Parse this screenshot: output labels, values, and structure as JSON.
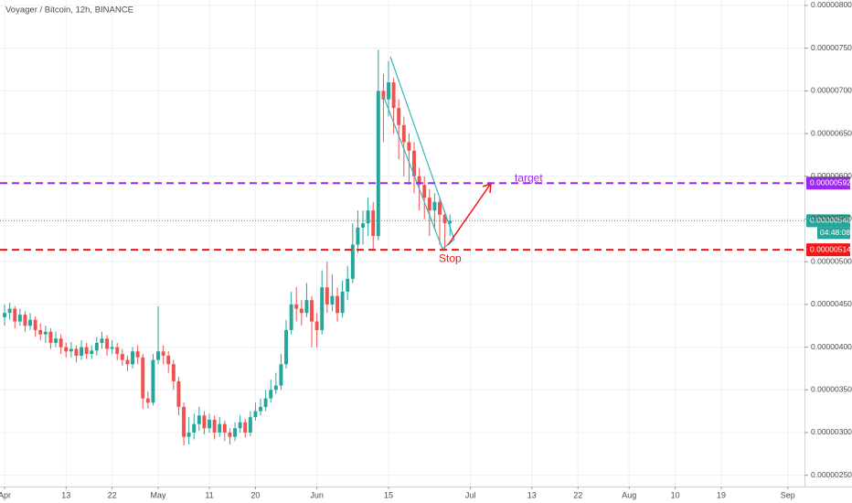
{
  "chart_data": {
    "type": "candlestick",
    "title": "Voyager / Bitcoin, 12h, BINANCE",
    "x": [
      0,
      1,
      2,
      3,
      4,
      5,
      6,
      7,
      8,
      9,
      10,
      11,
      12,
      13,
      14,
      15,
      16,
      17,
      18,
      19,
      20,
      21,
      22,
      23,
      24,
      25,
      26,
      27,
      28,
      29,
      30,
      31,
      32,
      33,
      34,
      35,
      36,
      37,
      38,
      39,
      40,
      41,
      42,
      43,
      44,
      45,
      46,
      47,
      48,
      49,
      50,
      51,
      52,
      53,
      54,
      55,
      56,
      57,
      58,
      59,
      60,
      61,
      62,
      63,
      64,
      65,
      66,
      67,
      68,
      69,
      70,
      71,
      72,
      73,
      74,
      75,
      76,
      77,
      78,
      79,
      80,
      81,
      82,
      83,
      84,
      85,
      86,
      87
    ],
    "open": [
      4.35e-06,
      4.4e-06,
      4.45e-06,
      4.3e-06,
      4.38e-06,
      4.25e-06,
      4.32e-06,
      4.2e-06,
      4.15e-06,
      4.18e-06,
      4.05e-06,
      4.1e-06,
      4e-06,
      3.95e-06,
      3.98e-06,
      3.9e-06,
      4e-06,
      3.92e-06,
      3.96e-06,
      4.05e-06,
      4.1e-06,
      3.98e-06,
      4e-06,
      3.92e-06,
      3.85e-06,
      3.8e-06,
      3.95e-06,
      3.88e-06,
      3.4e-06,
      3.35e-06,
      3.85e-06,
      3.95e-06,
      3.9e-06,
      3.8e-06,
      3.6e-06,
      3.3e-06,
      2.95e-06,
      3e-06,
      3.1e-06,
      3.2e-06,
      3.05e-06,
      3.15e-06,
      3e-06,
      3.1e-06,
      3e-06,
      2.95e-06,
      3.05e-06,
      3.12e-06,
      3e-06,
      3.18e-06,
      3.25e-06,
      3.3e-06,
      3.4e-06,
      3.5e-06,
      3.55e-06,
      3.8e-06,
      4.2e-06,
      4.5e-06,
      4.45e-06,
      4.4e-06,
      4.55e-06,
      4.3e-06,
      4.2e-06,
      4.7e-06,
      4.5e-06,
      4.6e-06,
      4.4e-06,
      4.65e-06,
      4.8e-06,
      5.2e-06,
      5.4e-06,
      5.45e-06,
      5.6e-06,
      5.3e-06,
      7e-06,
      6.9e-06,
      7.1e-06,
      6.8e-06,
      6.6e-06,
      6.4e-06,
      6.3e-06,
      6e-06,
      5.9e-06,
      5.75e-06,
      5.6e-06,
      5.7e-06,
      5.55e-06,
      5.45e-06
    ],
    "high": [
      4.5e-06,
      4.52e-06,
      4.48e-06,
      4.45e-06,
      4.42e-06,
      4.4e-06,
      4.36e-06,
      4.28e-06,
      4.25e-06,
      4.22e-06,
      4.18e-06,
      4.15e-06,
      4.05e-06,
      4.06e-06,
      4.02e-06,
      4.08e-06,
      4.05e-06,
      4.02e-06,
      4.12e-06,
      4.18e-06,
      4.14e-06,
      4.08e-06,
      4.05e-06,
      3.98e-06,
      3.9e-06,
      4e-06,
      4.02e-06,
      3.92e-06,
      3.48e-06,
      3.92e-06,
      4.48e-06,
      4.02e-06,
      3.95e-06,
      3.85e-06,
      3.65e-06,
      3.35e-06,
      3.18e-06,
      3.22e-06,
      3.3e-06,
      3.25e-06,
      3.22e-06,
      3.2e-06,
      3.18e-06,
      3.14e-06,
      3.05e-06,
      3.12e-06,
      3.2e-06,
      3.16e-06,
      3.25e-06,
      3.35e-06,
      3.4e-06,
      3.5e-06,
      3.62e-06,
      3.7e-06,
      3.92e-06,
      4.32e-06,
      4.65e-06,
      4.7e-06,
      4.55e-06,
      4.75e-06,
      4.6e-06,
      4.4e-06,
      4.9e-06,
      5e-06,
      4.85e-06,
      4.7e-06,
      4.78e-06,
      4.95e-06,
      5.45e-06,
      5.6e-06,
      5.6e-06,
      5.75e-06,
      5.7e-06,
      7.48e-06,
      7.2e-06,
      7.35e-06,
      7.15e-06,
      6.9e-06,
      6.7e-06,
      6.5e-06,
      6.4e-06,
      6.1e-06,
      6e-06,
      5.85e-06,
      5.8e-06,
      5.75e-06,
      5.6e-06,
      5.55e-06
    ],
    "low": [
      4.25e-06,
      4.32e-06,
      4.22e-06,
      4.25e-06,
      4.18e-06,
      4.2e-06,
      4.12e-06,
      4.08e-06,
      4.05e-06,
      3.98e-06,
      4e-06,
      3.92e-06,
      3.88e-06,
      3.88e-06,
      3.82e-06,
      3.85e-06,
      3.86e-06,
      3.86e-06,
      3.9e-06,
      3.98e-06,
      3.9e-06,
      3.92e-06,
      3.85e-06,
      3.78e-06,
      3.72e-06,
      3.75e-06,
      3.8e-06,
      3.28e-06,
      3.28e-06,
      3.32e-06,
      3.8e-06,
      3.8e-06,
      3.7e-06,
      3.5e-06,
      3.2e-06,
      2.85e-06,
      2.86e-06,
      2.92e-06,
      3.02e-06,
      2.98e-06,
      3e-06,
      2.92e-06,
      2.95e-06,
      2.9e-06,
      2.86e-06,
      2.9e-06,
      3e-06,
      2.94e-06,
      2.96e-06,
      3.14e-06,
      3.2e-06,
      3.25e-06,
      3.35e-06,
      3.45e-06,
      3.5e-06,
      3.75e-06,
      4.15e-06,
      4.3e-06,
      4.25e-06,
      4.35e-06,
      4e-06,
      4e-06,
      4.15e-06,
      4.4e-06,
      4.42e-06,
      4.3e-06,
      4.35e-06,
      4.55e-06,
      4.75e-06,
      5.1e-06,
      5.2e-06,
      5.3e-06,
      5.15e-06,
      5.25e-06,
      6.4e-06,
      6.7e-06,
      6.5e-06,
      6.2e-06,
      6e-06,
      5.9e-06,
      5.8e-06,
      5.6e-06,
      5.5e-06,
      5.3e-06,
      5.4e-06,
      5.2e-06,
      5.15e-06,
      5.3e-06
    ],
    "close": [
      4.4e-06,
      4.45e-06,
      4.3e-06,
      4.38e-06,
      4.25e-06,
      4.32e-06,
      4.2e-06,
      4.15e-06,
      4.18e-06,
      4.05e-06,
      4.1e-06,
      4e-06,
      3.95e-06,
      3.98e-06,
      3.9e-06,
      4e-06,
      3.92e-06,
      3.96e-06,
      4.05e-06,
      4.1e-06,
      3.98e-06,
      4e-06,
      3.92e-06,
      3.85e-06,
      3.8e-06,
      3.95e-06,
      3.88e-06,
      3.4e-06,
      3.35e-06,
      3.85e-06,
      3.95e-06,
      3.9e-06,
      3.8e-06,
      3.6e-06,
      3.3e-06,
      2.95e-06,
      3e-06,
      3.1e-06,
      3.2e-06,
      3.05e-06,
      3.15e-06,
      3e-06,
      3.1e-06,
      3e-06,
      2.95e-06,
      3.05e-06,
      3.12e-06,
      3e-06,
      3.18e-06,
      3.25e-06,
      3.3e-06,
      3.4e-06,
      3.5e-06,
      3.55e-06,
      3.8e-06,
      4.2e-06,
      4.5e-06,
      4.45e-06,
      4.4e-06,
      4.55e-06,
      4.3e-06,
      4.2e-06,
      4.7e-06,
      4.5e-06,
      4.6e-06,
      4.4e-06,
      4.65e-06,
      4.8e-06,
      5.2e-06,
      5.4e-06,
      5.45e-06,
      5.6e-06,
      5.3e-06,
      7e-06,
      6.9e-06,
      7.1e-06,
      6.8e-06,
      6.6e-06,
      6.4e-06,
      6.3e-06,
      6e-06,
      5.9e-06,
      5.75e-06,
      5.6e-06,
      5.7e-06,
      5.55e-06,
      5.45e-06,
      5.48e-06
    ],
    "up_color": "#26a69a",
    "down_color": "#ef5350",
    "xlim": [
      -0.9,
      156.25
    ],
    "xticks": [
      {
        "value": 0,
        "label": "Apr"
      },
      {
        "value": 12,
        "label": "13"
      },
      {
        "value": 21,
        "label": "22"
      },
      {
        "value": 30,
        "label": "May"
      },
      {
        "value": 40,
        "label": "11"
      },
      {
        "value": 49,
        "label": "20"
      },
      {
        "value": 61,
        "label": "Jun"
      },
      {
        "value": 75,
        "label": "15"
      },
      {
        "value": 91,
        "label": "Jul"
      },
      {
        "value": 103,
        "label": "13"
      },
      {
        "value": 112,
        "label": "22"
      },
      {
        "value": 122,
        "label": "Aug"
      },
      {
        "value": 131,
        "label": "10"
      },
      {
        "value": 140,
        "label": "19"
      },
      {
        "value": 153,
        "label": "Sep"
      }
    ],
    "ylim": [
      2.368e-06,
      8.064e-06
    ],
    "yticks": [
      {
        "value": 2.5e-06,
        "label": "0.00000250"
      },
      {
        "value": 3e-06,
        "label": "0.00000300"
      },
      {
        "value": 3.5e-06,
        "label": "0.00000350"
      },
      {
        "value": 4e-06,
        "label": "0.00000400"
      },
      {
        "value": 4.5e-06,
        "label": "0.00000450"
      },
      {
        "value": 5e-06,
        "label": "0.00000500"
      },
      {
        "value": 5.5e-06,
        "label": "0.00000550"
      },
      {
        "value": 6e-06,
        "label": "0.00000600"
      },
      {
        "value": 6.5e-06,
        "label": "0.00000650"
      },
      {
        "value": 7e-06,
        "label": "0.00000700"
      },
      {
        "value": 7.5e-06,
        "label": "0.00000750"
      },
      {
        "value": 8e-06,
        "label": "0.00000800"
      }
    ],
    "grid": true,
    "price_lines": [
      {
        "value": 5.92e-06,
        "label": "0.00000592",
        "color": "#9c27f0",
        "annotation": "target"
      },
      {
        "value": 5.14e-06,
        "label": "0.00000514",
        "color": "#f21616",
        "annotation": "Stop"
      }
    ],
    "last_price": {
      "value": 5.48e-06,
      "label": "0.00000548",
      "color": "#26a69a",
      "countdown": "04:48:08"
    }
  }
}
